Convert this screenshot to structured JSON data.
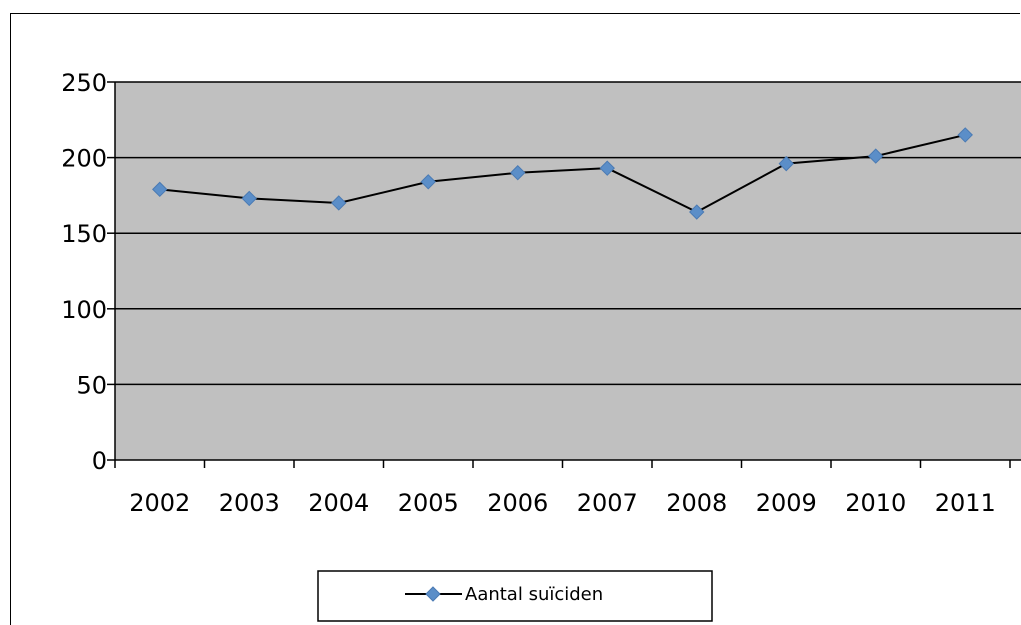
{
  "chart_data": {
    "type": "line",
    "categories": [
      "2002",
      "2003",
      "2004",
      "2005",
      "2006",
      "2007",
      "2008",
      "2009",
      "2010",
      "2011"
    ],
    "series": [
      {
        "name": "Aantal suïciden",
        "values": [
          179,
          173,
          170,
          184,
          190,
          193,
          164,
          196,
          201,
          215
        ],
        "color": "#5b8ec8"
      }
    ],
    "ylim": [
      0,
      250
    ],
    "yticks": [
      "0",
      "50",
      "100",
      "150",
      "200",
      "250"
    ],
    "title": "",
    "xlabel": "",
    "ylabel": "",
    "grid": true,
    "legend_position": "bottom",
    "plot_background": "#c0c0c0",
    "line_color": "#000000"
  }
}
